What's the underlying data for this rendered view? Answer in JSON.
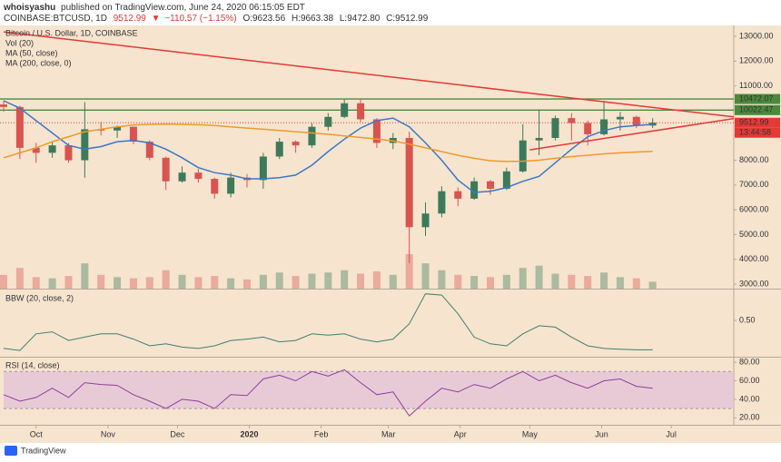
{
  "header": {
    "author": "whoisyashu",
    "published": "published on TradingView.com, June 24, 2020 06:15:05 EDT",
    "symbol": "COINBASE:BTCUSD, 1D",
    "price": "9512.99",
    "arrow": "▼",
    "change": "−110.57 (−1.15%)",
    "open": "O:9623.56",
    "high": "H:9663.38",
    "low": "L:9472.80",
    "close": "C:9512.99"
  },
  "footer": {
    "brand": "TradingView"
  },
  "chart_data": [
    {
      "type": "candlestick",
      "title": "Bitcoin / U.S. Dollar, 1D, COINBASE",
      "x": [
        0,
        7,
        14,
        21,
        28,
        35,
        42,
        49,
        56,
        63,
        70,
        77,
        84,
        91,
        98,
        105,
        112,
        119,
        126,
        133,
        140,
        147,
        154,
        161,
        168,
        175,
        182,
        189,
        196,
        203,
        210,
        217,
        224,
        231,
        238,
        245,
        252,
        259,
        266,
        273,
        280
      ],
      "xlim": [
        0,
        315
      ],
      "xticks": [
        {
          "value": 14,
          "label": "Oct"
        },
        {
          "value": 45,
          "label": "Nov"
        },
        {
          "value": 75,
          "label": "Dec"
        },
        {
          "value": 106,
          "label": "2020"
        },
        {
          "value": 137,
          "label": "Feb"
        },
        {
          "value": 166,
          "label": "Mar"
        },
        {
          "value": 197,
          "label": "Apr"
        },
        {
          "value": 227,
          "label": "May"
        },
        {
          "value": 258,
          "label": "Jun"
        },
        {
          "value": 288,
          "label": "Jul"
        }
      ],
      "ylim": [
        2820,
        13440
      ],
      "yticks": [
        {
          "value": 3000,
          "label": "3000.00"
        },
        {
          "value": 4000,
          "label": "4000.00"
        },
        {
          "value": 5000,
          "label": "5000.00"
        },
        {
          "value": 6000,
          "label": "6000.00"
        },
        {
          "value": 7000,
          "label": "7000.00"
        },
        {
          "value": 8000,
          "label": "8000.00"
        },
        {
          "value": 9000,
          "label": "9000.00"
        },
        {
          "value": 10000,
          "label": "10000.00"
        },
        {
          "value": 11000,
          "label": "11000.00"
        },
        {
          "value": 12000,
          "label": "12000.00"
        },
        {
          "value": 13000,
          "label": "13000.00"
        }
      ],
      "open": [
        10250,
        10150,
        8500,
        8300,
        8600,
        8000,
        9250,
        9200,
        9350,
        8750,
        8100,
        7150,
        7500,
        7250,
        6650,
        7300,
        7200,
        8150,
        8750,
        8600,
        9350,
        9750,
        10300,
        9650,
        8700,
        8900,
        5300,
        5850,
        6750,
        6450,
        7150,
        6850,
        7550,
        8800,
        8900,
        9700,
        9500,
        9050,
        9650,
        9750,
        9400
      ],
      "high": [
        10400,
        10200,
        8700,
        8750,
        8700,
        10350,
        9550,
        9400,
        9350,
        8800,
        8150,
        7750,
        7650,
        7300,
        7500,
        7450,
        8300,
        8900,
        8800,
        9500,
        9900,
        10450,
        10500,
        9700,
        9100,
        9150,
        6300,
        6950,
        6900,
        7300,
        7200,
        7700,
        9450,
        10050,
        9800,
        9900,
        9600,
        10400,
        9950,
        9800,
        9700
      ],
      "low": [
        9950,
        8050,
        7900,
        8100,
        7900,
        7300,
        9000,
        8900,
        8650,
        8000,
        6800,
        7100,
        7100,
        6450,
        6500,
        6900,
        6850,
        8050,
        8300,
        8500,
        9200,
        9700,
        9550,
        8500,
        8450,
        3850,
        4950,
        5700,
        6150,
        6400,
        6600,
        6800,
        7500,
        8200,
        8800,
        8800,
        8600,
        9000,
        9200,
        9300,
        9300
      ],
      "close": [
        10150,
        8500,
        8300,
        8600,
        8000,
        9250,
        9200,
        9350,
        8750,
        8100,
        7150,
        7500,
        7250,
        6650,
        7300,
        7200,
        8150,
        8750,
        8600,
        9350,
        9750,
        10300,
        9650,
        8700,
        8900,
        5300,
        5850,
        6750,
        6450,
        7150,
        6850,
        7550,
        8800,
        8900,
        9700,
        9500,
        9050,
        9650,
        9750,
        9400,
        9513
      ],
      "up_color": "#3d7a5a",
      "down_color": "#d9534f",
      "volume": {
        "name": "Vol (20)",
        "values": [
          12,
          18,
          10,
          9,
          11,
          22,
          12,
          10,
          9,
          10,
          16,
          12,
          10,
          11,
          9,
          8,
          12,
          14,
          11,
          13,
          14,
          16,
          13,
          15,
          12,
          30,
          22,
          16,
          12,
          11,
          10,
          12,
          18,
          20,
          13,
          12,
          11,
          14,
          10,
          9,
          6
        ]
      },
      "series": [
        {
          "name": "MA (50, close)",
          "color": "#3b78c9",
          "values": [
            10400,
            10100,
            9600,
            9100,
            8600,
            8450,
            8550,
            8750,
            8800,
            8700,
            8450,
            8100,
            7700,
            7500,
            7400,
            7250,
            7250,
            7300,
            7400,
            7800,
            8350,
            8850,
            9300,
            9600,
            9700,
            9350,
            8700,
            8000,
            7200,
            6700,
            6750,
            6900,
            7150,
            7350,
            7900,
            8450,
            8950,
            9200,
            9350,
            9400,
            9450
          ]
        },
        {
          "name": "MA (200, close, 0)",
          "color": "#f09a28",
          "values": [
            8100,
            8300,
            8500,
            8750,
            8950,
            9150,
            9250,
            9350,
            9420,
            9450,
            9460,
            9450,
            9430,
            9400,
            9350,
            9300,
            9250,
            9200,
            9150,
            9100,
            9050,
            8980,
            8920,
            8850,
            8780,
            8650,
            8500,
            8350,
            8200,
            8080,
            7980,
            7950,
            7960,
            8000,
            8080,
            8150,
            8200,
            8260,
            8300,
            8330,
            8360
          ]
        }
      ],
      "levels": [
        {
          "value": 10472.07,
          "color": "#4b8a3c"
        },
        {
          "value": 10022.47,
          "color": "#4b8a3c"
        }
      ],
      "last_price": 9512.99,
      "countdown": "13:44:58",
      "last_color": "#e53935",
      "trendlines": [
        {
          "x": [
            0,
            315
          ],
          "y": [
            13180,
            9750
          ],
          "color": "#e53935"
        },
        {
          "x": [
            227,
            315
          ],
          "y": [
            8420,
            9680
          ],
          "color": "#e53935"
        }
      ]
    },
    {
      "type": "line",
      "ylim": [
        -0.03,
        0.95
      ],
      "yticks": [
        {
          "value": 0.5,
          "label": "0.50"
        }
      ],
      "series": [
        {
          "name": "BBW (20, close, 2)",
          "color": "#3f7f70",
          "values": [
            0.08,
            0.05,
            0.3,
            0.33,
            0.2,
            0.25,
            0.3,
            0.3,
            0.22,
            0.12,
            0.15,
            0.1,
            0.08,
            0.12,
            0.2,
            0.22,
            0.25,
            0.18,
            0.2,
            0.3,
            0.28,
            0.3,
            0.22,
            0.18,
            0.22,
            0.45,
            0.9,
            0.88,
            0.6,
            0.25,
            0.15,
            0.12,
            0.3,
            0.42,
            0.4,
            0.25,
            0.12,
            0.08,
            0.07,
            0.06,
            0.06
          ]
        }
      ]
    },
    {
      "type": "line",
      "ylim": [
        12.5,
        85
      ],
      "yticks": [
        {
          "value": 20,
          "label": "20.00"
        },
        {
          "value": 40,
          "label": "40.00"
        },
        {
          "value": 60,
          "label": "60.00"
        },
        {
          "value": 80,
          "label": "80.00"
        }
      ],
      "band": [
        30,
        70
      ],
      "band_color": "#e3bfd8",
      "series": [
        {
          "name": "RSI (14, close)",
          "color": "#8e3f9e",
          "values": [
            45,
            38,
            42,
            52,
            42,
            58,
            56,
            55,
            45,
            38,
            30,
            40,
            38,
            30,
            45,
            44,
            62,
            66,
            60,
            70,
            65,
            72,
            58,
            45,
            48,
            22,
            38,
            52,
            48,
            56,
            52,
            62,
            70,
            60,
            66,
            58,
            52,
            60,
            62,
            54,
            52
          ]
        }
      ]
    }
  ]
}
